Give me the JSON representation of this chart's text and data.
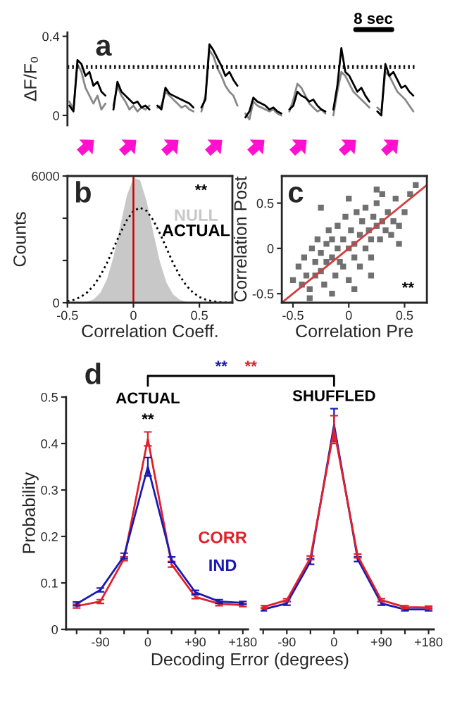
{
  "chart_data": [
    {
      "type": "line",
      "title": "a",
      "ylabel": "ΔF/F₀",
      "categories": [
        null,
        null,
        null,
        null,
        null,
        null,
        null,
        null,
        null,
        null,
        null,
        null,
        null,
        null,
        null,
        null,
        null,
        null,
        null,
        null,
        null,
        null,
        null,
        null,
        null,
        null,
        null,
        null,
        null,
        null,
        null,
        null,
        null,
        null,
        null,
        null,
        null,
        null,
        null,
        null,
        null,
        null,
        null,
        null,
        null,
        null,
        null,
        null,
        null,
        null,
        null,
        null,
        null,
        null,
        null,
        null,
        null,
        null,
        null,
        null,
        null,
        null,
        null,
        null,
        null,
        null,
        null,
        null,
        null,
        null,
        null,
        null,
        null,
        null,
        null,
        null,
        null,
        null,
        null,
        null,
        null,
        null,
        null,
        null,
        null,
        null,
        null
      ],
      "ylim": [
        -0.05,
        0.42
      ],
      "yticks": [
        0,
        0.4
      ],
      "tick_labels": "y",
      "annotations": [
        "8 sec"
      ],
      "ref_lines": [
        {
          "axis": "y",
          "value": 0.25,
          "color": "#000000",
          "line_style": "dotted"
        },
        {
          "axis": "y",
          "value": 0.24,
          "color": "#000000",
          "line_style": "dotted"
        }
      ],
      "series": [
        {
          "color": "#888888",
          "values": [
            0.07,
            0.03,
            0.26,
            0.22,
            0.14,
            0.1,
            0.06,
            0.1,
            0.03,
            0.06,
            null,
            0.05,
            0.15,
            0.1,
            0.07,
            0.03,
            0.05,
            0.02,
            0.04,
            0.03,
            0.05,
            null,
            0.04,
            0.05,
            0.12,
            0.1,
            0.08,
            0.06,
            0.04,
            0.05,
            0.03,
            0.02,
            null,
            0.02,
            0.1,
            0.33,
            0.3,
            0.24,
            0.2,
            0.15,
            0.12,
            0.1,
            0.05,
            null,
            0.01,
            -0.02,
            0.07,
            0.05,
            0.04,
            0.03,
            0.02,
            0.03,
            0.01,
            0.0,
            null,
            0.02,
            0.08,
            0.16,
            0.14,
            0.1,
            0.06,
            0.04,
            0.02,
            0.03,
            0.01,
            null,
            0.0,
            0.12,
            0.22,
            0.2,
            0.16,
            0.12,
            0.1,
            0.08,
            0.06,
            0.04,
            null,
            0.04,
            0.02,
            0.22,
            0.2,
            0.16,
            0.12,
            0.1,
            0.08,
            0.05,
            0.02
          ]
        },
        {
          "color": "#000000",
          "values": [
            0.05,
            0.02,
            0.28,
            0.26,
            0.2,
            0.22,
            0.15,
            0.17,
            0.12,
            0.1,
            null,
            0.03,
            0.17,
            0.12,
            0.1,
            0.08,
            0.06,
            0.07,
            0.04,
            0.05,
            0.03,
            null,
            0.05,
            0.03,
            0.14,
            0.11,
            0.1,
            0.09,
            0.08,
            0.07,
            0.06,
            0.04,
            null,
            0.04,
            0.08,
            0.36,
            0.33,
            0.29,
            0.25,
            0.2,
            0.22,
            0.18,
            0.15,
            null,
            -0.01,
            0.02,
            0.09,
            0.07,
            0.06,
            0.05,
            0.03,
            0.04,
            0.02,
            0.01,
            null,
            0.03,
            0.05,
            0.12,
            0.1,
            0.09,
            0.07,
            0.08,
            0.05,
            0.03,
            0.02,
            null,
            0.03,
            0.15,
            0.34,
            0.22,
            0.2,
            0.16,
            0.12,
            0.14,
            0.1,
            0.07,
            null,
            0.02,
            0.0,
            0.26,
            0.2,
            0.22,
            0.18,
            0.14,
            0.15,
            0.12,
            0.1
          ]
        }
      ]
    },
    {
      "type": "line",
      "title": "b",
      "xlabel": "Correlation Coeff.",
      "ylabel": "Counts",
      "x": [
        -0.5,
        -0.45,
        -0.4,
        -0.35,
        -0.3,
        -0.25,
        -0.2,
        -0.15,
        -0.1,
        -0.05,
        0,
        0.05,
        0.1,
        0.15,
        0.2,
        0.25,
        0.3,
        0.35,
        0.4,
        0.45,
        0.5,
        0.55,
        0.6,
        0.65,
        0.7,
        0.75
      ],
      "xlim": [
        -0.5,
        0.75
      ],
      "xticks": [
        -0.5,
        0,
        0.5
      ],
      "ylim": [
        0,
        6000
      ],
      "yticks": [
        0,
        {
          "value": 2000,
          "label": null
        },
        {
          "value": 4000,
          "label": null
        },
        6000
      ],
      "annotations": [
        "**"
      ],
      "ref_lines": [
        {
          "axis": "x",
          "value": 0,
          "color": "#cc0000"
        }
      ],
      "series": [
        {
          "name": "NULL",
          "type": "area",
          "color": "#c8c8c8",
          "values": [
            0,
            0,
            0,
            50,
            170,
            480,
            1120,
            2200,
            3640,
            5060,
            5920,
            5810,
            4800,
            3340,
            1950,
            960,
            400,
            140,
            40,
            0,
            0,
            0,
            0,
            0,
            0,
            0
          ]
        },
        {
          "name": "ACTUAL",
          "color": "#000000",
          "line_style": "dotted",
          "values": [
            70,
            140,
            270,
            490,
            820,
            1290,
            1890,
            2590,
            3290,
            3910,
            4350,
            4500,
            4350,
            3910,
            3290,
            2590,
            1890,
            1290,
            820,
            490,
            270,
            140,
            70,
            30,
            10,
            0
          ]
        }
      ]
    },
    {
      "type": "scatter",
      "title": "c",
      "xlabel": "Correlation Pre",
      "ylabel": "Correlation Post",
      "xlim": [
        -0.6,
        0.7
      ],
      "xticks": [
        -0.5,
        0,
        0.5
      ],
      "ylim": [
        -0.6,
        0.8
      ],
      "yticks": [
        -0.5,
        0,
        0.5
      ],
      "annotations": [
        "**"
      ],
      "x": [
        -0.5,
        -0.45,
        -0.42,
        -0.4,
        -0.38,
        -0.35,
        -0.33,
        -0.3,
        -0.3,
        -0.28,
        -0.25,
        -0.25,
        -0.22,
        -0.2,
        -0.2,
        -0.18,
        -0.15,
        -0.15,
        -0.12,
        -0.1,
        -0.1,
        -0.08,
        -0.05,
        -0.05,
        -0.03,
        0,
        0,
        0.02,
        0.05,
        0.05,
        0.07,
        0.1,
        0.1,
        0.12,
        0.15,
        0.15,
        0.18,
        0.2,
        0.2,
        0.22,
        0.25,
        0.25,
        0.28,
        0.3,
        0.3,
        0.33,
        0.35,
        0.38,
        0.4,
        0.42,
        0.45,
        0.5,
        0.55,
        0.6,
        -0.35,
        -0.15,
        0.05,
        0.25,
        0.45,
        -0.25,
        0,
        0.2
      ],
      "series": [
        {
          "color": "#707070",
          "values": [
            -0.35,
            -0.2,
            -0.4,
            -0.1,
            -0.3,
            -0.45,
            0,
            -0.15,
            -0.3,
            0.1,
            -0.05,
            -0.25,
            -0.4,
            0.05,
            -0.15,
            0.2,
            -0.1,
            0.1,
            -0.3,
            0,
            0.25,
            -0.15,
            0.1,
            -0.2,
            0.35,
            0,
            -0.35,
            0.2,
            0.05,
            -0.1,
            0.4,
            0.15,
            -0.2,
            0.3,
            0,
            0.45,
            0.2,
            0.1,
            -0.1,
            0.35,
            0.25,
            0.5,
            0.1,
            0.3,
            0.6,
            0.2,
            0.4,
            0.15,
            0.3,
            0.55,
            0.25,
            0.4,
            0.6,
            0.7,
            -0.55,
            -0.5,
            -0.45,
            0.65,
            0.05,
            0.45,
            0.55,
            -0.3
          ]
        },
        {
          "type": "line",
          "color": "#d04040",
          "x": [
            -0.6,
            0.7
          ],
          "values": [
            -0.6,
            0.7
          ]
        }
      ]
    },
    {
      "type": "line",
      "title": "d",
      "xlabel": "Decoding Error (degrees)",
      "ylabel": "Probability",
      "x": [
        -135,
        -90,
        -45,
        0,
        45,
        90,
        135,
        180
      ],
      "xlim": [
        -155,
        190
      ],
      "xticks": [
        {
          "value": -135,
          "label": null
        },
        -90,
        {
          "value": -45,
          "label": null
        },
        0,
        {
          "value": 45,
          "label": null
        },
        {
          "value": 90,
          "label": "+90"
        },
        {
          "value": 135,
          "label": null
        },
        {
          "value": 180,
          "label": "+180"
        }
      ],
      "ylim": [
        0,
        0.5
      ],
      "yticks": [
        0,
        0.1,
        0.2,
        0.3,
        0.4,
        0.5
      ],
      "annotations": [
        "ACTUAL",
        "**",
        "**",
        "**"
      ],
      "series": [
        {
          "name": "CORR",
          "color": "#e0202a",
          "values": [
            0.05,
            0.06,
            0.152,
            0.41,
            0.14,
            0.07,
            0.055,
            0.052
          ],
          "errors": [
            0.004,
            0.004,
            0.004,
            0.015,
            0.006,
            0.004,
            0.004,
            0.003
          ]
        },
        {
          "name": "IND",
          "color": "#1a1ab0",
          "values": [
            0.055,
            0.085,
            0.158,
            0.35,
            0.15,
            0.08,
            0.06,
            0.057
          ],
          "errors": [
            0.004,
            0.004,
            0.006,
            0.02,
            0.006,
            0.004,
            0.004,
            0.003
          ]
        }
      ]
    },
    {
      "type": "line",
      "x": [
        -135,
        -90,
        -45,
        0,
        45,
        90,
        135,
        180
      ],
      "xlim": [
        -140,
        190
      ],
      "xticks": [
        {
          "value": -135,
          "label": null
        },
        -90,
        {
          "value": -45,
          "label": null
        },
        0,
        {
          "value": 45,
          "label": null
        },
        {
          "value": 90,
          "label": "+90"
        },
        {
          "value": 135,
          "label": null
        },
        {
          "value": 180,
          "label": "+180"
        }
      ],
      "ylim": [
        0,
        0.5
      ],
      "tick_labels": "x",
      "annotations": [
        "SHUFFLED"
      ],
      "series": [
        {
          "color": "#1a1ab0",
          "values": [
            0.043,
            0.056,
            0.146,
            0.44,
            0.151,
            0.056,
            0.043,
            0.043
          ],
          "errors": [
            0.003,
            0.004,
            0.006,
            0.035,
            0.005,
            0.004,
            0.003,
            0.003
          ]
        },
        {
          "color": "#e0202a",
          "values": [
            0.048,
            0.063,
            0.154,
            0.43,
            0.158,
            0.063,
            0.048,
            0.047
          ],
          "errors": [
            0.003,
            0.003,
            0.004,
            0.03,
            0.004,
            0.003,
            0.003,
            0.003
          ]
        }
      ]
    }
  ]
}
